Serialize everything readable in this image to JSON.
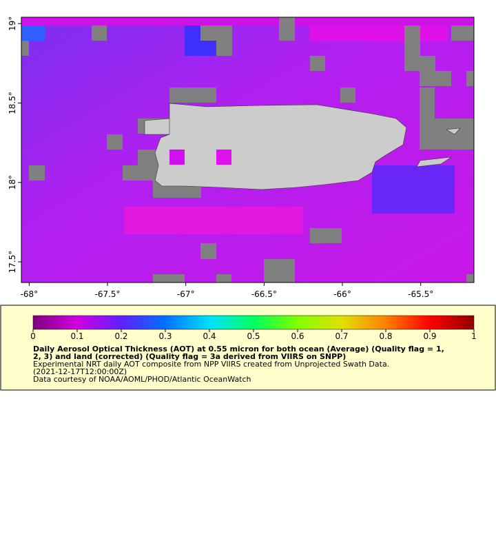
{
  "map": {
    "xlim": [
      -68.05,
      -65.16
    ],
    "ylim": [
      17.37,
      19.04
    ],
    "xticks": [
      {
        "value": -68,
        "label": "-68°"
      },
      {
        "value": -67.5,
        "label": "-67.5°"
      },
      {
        "value": -67,
        "label": "-67°"
      },
      {
        "value": -66.5,
        "label": "-66.5°"
      },
      {
        "value": -66,
        "label": "-66°"
      },
      {
        "value": -65.5,
        "label": "-65.5°"
      }
    ],
    "yticks": [
      {
        "value": 17.5,
        "label": "17.5°"
      },
      {
        "value": 18,
        "label": "18°"
      },
      {
        "value": 18.5,
        "label": "18.5°"
      },
      {
        "value": 19,
        "label": "19°"
      }
    ]
  },
  "colorbar": {
    "lim": [
      0,
      1
    ],
    "ticks": [
      0,
      0.1,
      0.2,
      0.3,
      0.4,
      0.5,
      0.6,
      0.7,
      0.8,
      0.9,
      1
    ]
  },
  "legend": {
    "title_lines": [
      "Daily Aerosol Optical Thickness (AOT) at 0.55 micron for both ocean (Average) (Quality flag = 1,",
      "2, 3) and land (corrected) (Quality flag = 3a derived from VIIRS on SNPP)"
    ],
    "lines": [
      "Experimental NRT daily AOT composite from NPP VIIRS created from Unprojected Swath Data.",
      "(2021-12-17T12:00:00Z)",
      "Data courtesy of NOAA/AOML/PHOD/Atlantic OceanWatch"
    ]
  }
}
